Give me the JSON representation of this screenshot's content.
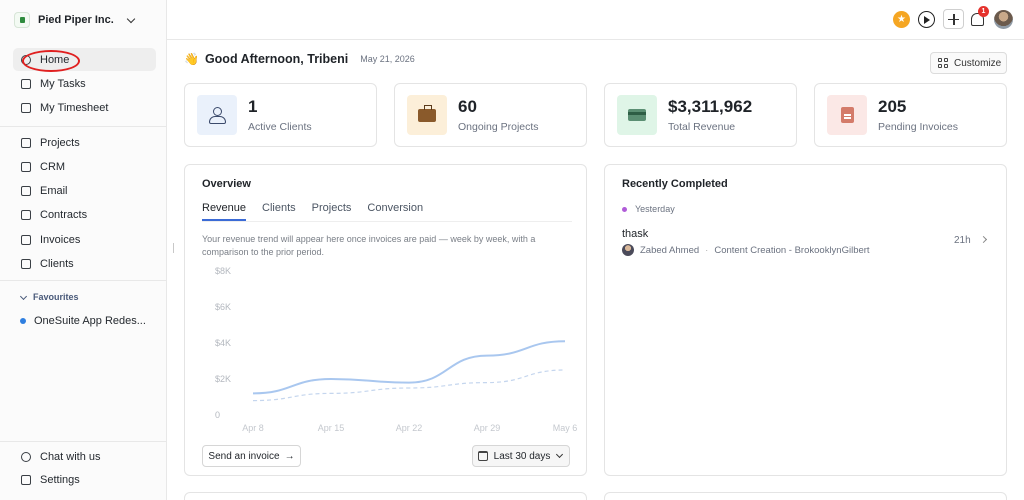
{
  "sidebar": {
    "org_name": "Pied Piper Inc.",
    "nav_top": [
      {
        "label": "Home",
        "icon": "home-icon",
        "active": true
      },
      {
        "label": "My Tasks",
        "icon": "tasks-icon"
      },
      {
        "label": "My Timesheet",
        "icon": "timesheet-icon"
      }
    ],
    "nav_main": [
      {
        "label": "Projects",
        "icon": "projects-icon"
      },
      {
        "label": "CRM",
        "icon": "crm-icon"
      },
      {
        "label": "Email",
        "icon": "email-icon"
      },
      {
        "label": "Contracts",
        "icon": "contracts-icon"
      },
      {
        "label": "Invoices",
        "icon": "invoices-icon"
      },
      {
        "label": "Clients",
        "icon": "clients-icon"
      }
    ],
    "favourites_label": "Favourites",
    "favourites": [
      {
        "label": "OneSuite App Redes..."
      }
    ],
    "footer": [
      {
        "label": "Chat with us",
        "icon": "chat-icon"
      },
      {
        "label": "Settings",
        "icon": "settings-icon"
      }
    ]
  },
  "topbar": {
    "notification_count": "1"
  },
  "greeting": {
    "emoji": "👋",
    "text": "Good Afternoon, Tribeni",
    "date": "May 21, 2026",
    "customize_label": "Customize"
  },
  "stats": [
    {
      "value": "1",
      "label": "Active Clients",
      "icon": "people-icon",
      "bg": "#eaf1fb"
    },
    {
      "value": "60",
      "label": "Ongoing Projects",
      "icon": "briefcase-icon",
      "bg": "#fcefd9"
    },
    {
      "value": "$3,311,962",
      "label": "Total Revenue",
      "icon": "card-icon",
      "bg": "#dff5e7"
    },
    {
      "value": "205",
      "label": "Pending Invoices",
      "icon": "document-icon",
      "bg": "#fbe8e6"
    }
  ],
  "overview": {
    "title": "Overview",
    "tabs": [
      "Revenue",
      "Clients",
      "Projects",
      "Conversion"
    ],
    "description": "Your revenue trend will appear here once invoices are paid — week by week, with a comparison to the prior period.",
    "send_invoice_label": "Send an invoice",
    "send_invoice_arrow": "→",
    "range_label": "Last 30 days"
  },
  "chart_data": {
    "type": "line",
    "x": [
      "Apr 8",
      "Apr 15",
      "Apr 22",
      "Apr 29",
      "May 6"
    ],
    "y_ticks": [
      "$8K",
      "$6K",
      "$4K",
      "$2K",
      "0"
    ],
    "ylim": [
      0,
      8000
    ],
    "grid": false,
    "series": [
      {
        "values": [
          1200,
          2000,
          1800,
          3300,
          4100
        ],
        "color": "#a9c7ef",
        "style": "solid"
      },
      {
        "values": [
          800,
          1200,
          1500,
          1800,
          2500
        ],
        "color": "#c5d6ee",
        "style": "dashed"
      }
    ]
  },
  "recent": {
    "title": "Recently Completed",
    "group_label": "Yesterday",
    "items": [
      {
        "name": "thask",
        "user": "Zabed Ahmed",
        "project": "Content Creation - BrokooklynGilbert",
        "time": "21h"
      }
    ]
  }
}
